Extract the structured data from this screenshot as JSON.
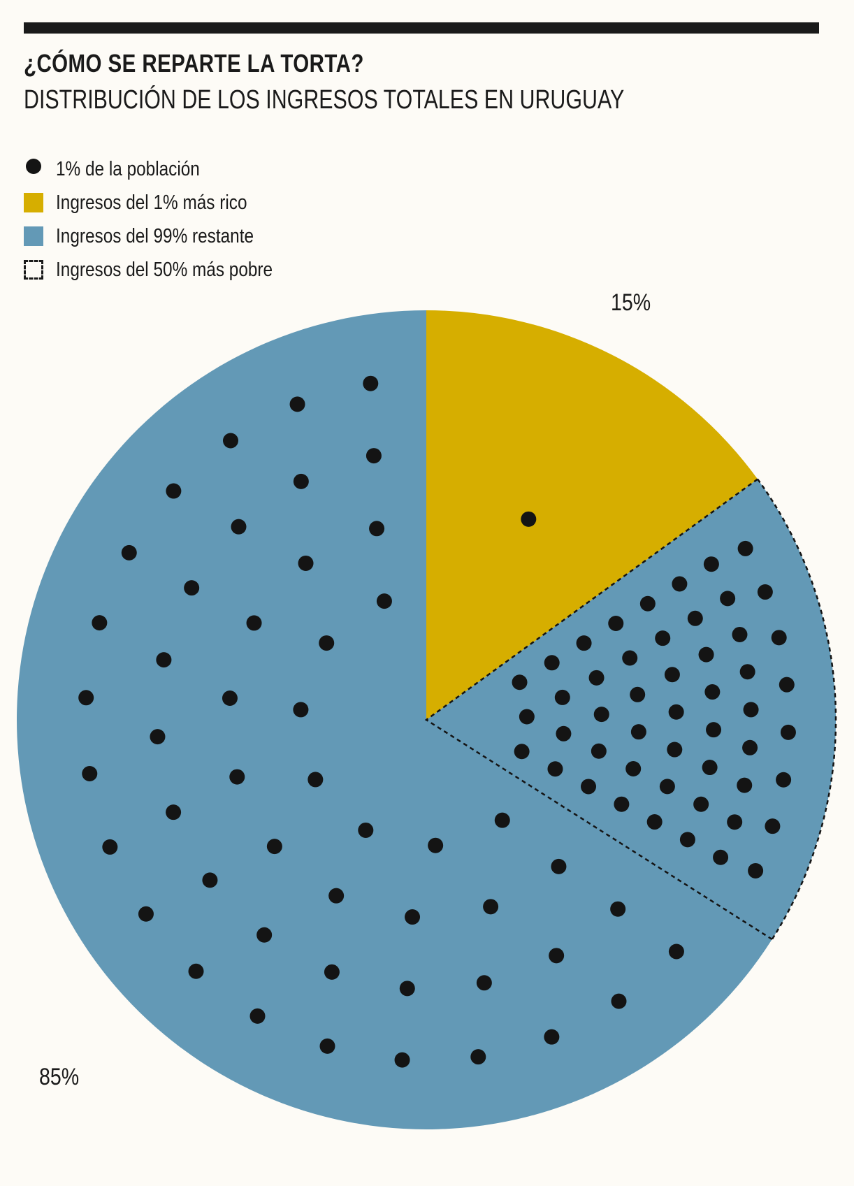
{
  "title": "¿CÓMO SE REPARTE LA TORTA?",
  "subtitle": "DISTRIBUCIÓN DE LOS INGRESOS TOTALES EN URUGUAY",
  "legend": [
    {
      "icon": "dot-icon",
      "label": "1% de la población",
      "color": "#141414"
    },
    {
      "icon": "square-swatch",
      "label": "Ingresos del 1% más rico",
      "color": "#d6ae00"
    },
    {
      "icon": "square-swatch",
      "label": "Ingresos del 99% restante",
      "color": "#6399b6"
    },
    {
      "icon": "dashed-square-swatch",
      "label": "Ingresos del 50% más pobre",
      "color": "#141414"
    }
  ],
  "labels": {
    "rich_pct": "15%",
    "rest_pct": "85%"
  },
  "chart_data": {
    "type": "pie",
    "title": "¿CÓMO SE REPARTE LA TORTA?",
    "subtitle": "DISTRIBUCIÓN DE LOS INGRESOS TOTALES EN URUGUAY",
    "slices": [
      {
        "name": "Ingresos del 1% más rico",
        "value": 15,
        "label": "15%",
        "color": "#d6ae00",
        "dots": 1
      },
      {
        "name": "Ingresos del 99% restante",
        "value": 85,
        "label": "85%",
        "color": "#6399b6",
        "dots": 99
      }
    ],
    "sub_slices": [
      {
        "name": "Ingresos del 50% más pobre",
        "value": 19,
        "dots": 50,
        "within": "Ingresos del 99% restante",
        "style": "dashed"
      }
    ],
    "dot_meaning": "1% de la población",
    "dot_color": "#141414",
    "legend_position": "top-left"
  }
}
